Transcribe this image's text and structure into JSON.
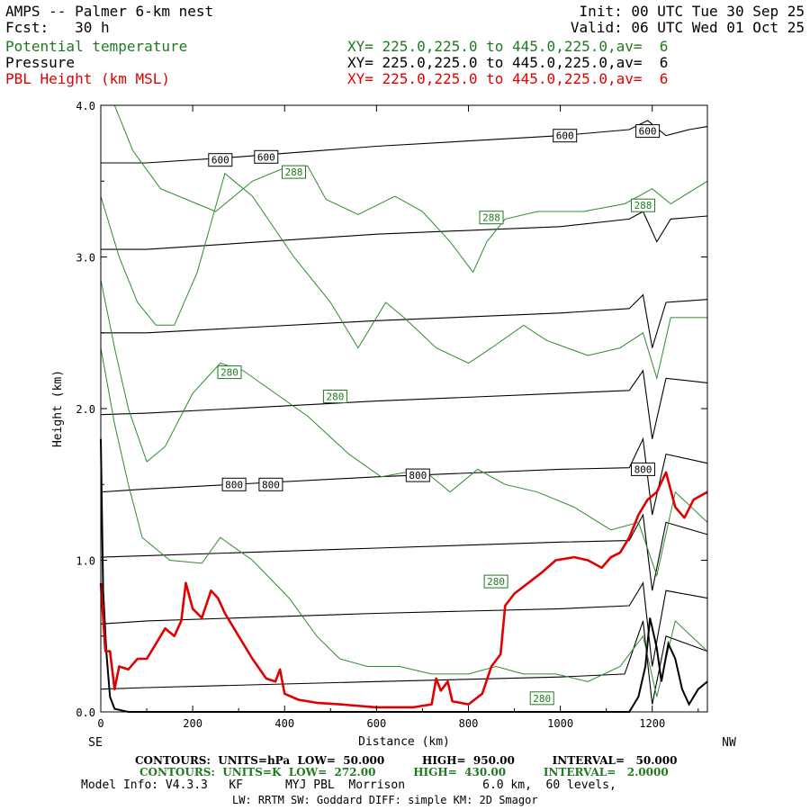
{
  "header": {
    "title": "AMPS -- Palmer 6-km nest",
    "fcst": "Fcst:   30 h",
    "init": "Init: 00 UTC Tue 30 Sep 25",
    "valid": "Valid: 06 UTC Wed 01 Oct 25",
    "field1": "Potential temperature",
    "field2": "Pressure",
    "field3": "PBL Height (km MSL)",
    "xy1": "XY= 225.0,225.0 to 445.0,225.0,av=  6",
    "xy2": "XY= 225.0,225.0 to 445.0,225.0,av=  6",
    "xy3": "XY= 225.0,225.0 to 445.0,225.0,av=  6"
  },
  "footer": {
    "line1": "CONTOURS:  UNITS=hPa  LOW=  50.000          HIGH=  950.00          INTERVAL=   50.000",
    "line2": "CONTOURS:  UNITS=K  LOW=  272.00          HIGH=  430.00          INTERVAL=   2.0000",
    "line3": "Model Info: V4.3.3   KF      MYJ PBL  Morrison           6.0 km,  60 levels,",
    "line4": "LW: RRTM SW: Goddard DIFF: simple KM: 2D Smagor"
  },
  "colors": {
    "theta": "#2e8b2e",
    "pressure": "#000000",
    "pbl": "#e00000"
  },
  "chart_data": {
    "type": "line",
    "xlabel": "Distance (km)",
    "ylabel": "Height (km)",
    "xlim": [
      0,
      1320
    ],
    "ylim": [
      0,
      4
    ],
    "x_ticks": [
      0,
      200,
      400,
      600,
      800,
      1000,
      1200
    ],
    "x_tick_labels": [
      "0",
      "200",
      "400",
      "600",
      "800",
      "1000",
      "1200"
    ],
    "y_ticks": [
      0,
      1,
      2,
      3,
      4
    ],
    "y_tick_labels": [
      "0.0",
      "1.0",
      "2.0",
      "3.0",
      "4.0"
    ],
    "left_end_label": "SE",
    "right_end_label": "NW",
    "pressure_contours": [
      {
        "level": 600,
        "label": "600",
        "points": [
          [
            0,
            3.62
          ],
          [
            100,
            3.62
          ],
          [
            300,
            3.66
          ],
          [
            600,
            3.73
          ],
          [
            1000,
            3.8
          ],
          [
            1150,
            3.84
          ],
          [
            1190,
            3.9
          ],
          [
            1230,
            3.8
          ],
          [
            1280,
            3.84
          ],
          [
            1320,
            3.86
          ]
        ],
        "label_positions": [
          [
            260,
            3.64
          ],
          [
            360,
            3.66
          ],
          [
            1010,
            3.8
          ],
          [
            1190,
            3.83
          ]
        ]
      },
      {
        "level": 650,
        "label": "",
        "points": [
          [
            0,
            3.05
          ],
          [
            100,
            3.05
          ],
          [
            600,
            3.15
          ],
          [
            1000,
            3.2
          ],
          [
            1150,
            3.25
          ],
          [
            1180,
            3.3
          ],
          [
            1210,
            3.1
          ],
          [
            1240,
            3.25
          ],
          [
            1320,
            3.27
          ]
        ]
      },
      {
        "level": 700,
        "label": "",
        "points": [
          [
            0,
            2.5
          ],
          [
            100,
            2.5
          ],
          [
            600,
            2.58
          ],
          [
            1000,
            2.63
          ],
          [
            1150,
            2.66
          ],
          [
            1180,
            2.75
          ],
          [
            1200,
            2.4
          ],
          [
            1230,
            2.7
          ],
          [
            1320,
            2.72
          ]
        ]
      },
      {
        "level": 750,
        "label": "",
        "points": [
          [
            0,
            1.96
          ],
          [
            100,
            1.97
          ],
          [
            600,
            2.05
          ],
          [
            1000,
            2.1
          ],
          [
            1150,
            2.12
          ],
          [
            1180,
            2.25
          ],
          [
            1200,
            1.8
          ],
          [
            1230,
            2.2
          ],
          [
            1320,
            2.17
          ]
        ]
      },
      {
        "level": 800,
        "label": "800",
        "points": [
          [
            0,
            1.45
          ],
          [
            100,
            1.47
          ],
          [
            600,
            1.55
          ],
          [
            1000,
            1.6
          ],
          [
            1150,
            1.61
          ],
          [
            1180,
            1.8
          ],
          [
            1200,
            1.3
          ],
          [
            1230,
            1.7
          ],
          [
            1320,
            1.64
          ]
        ],
        "label_positions": [
          [
            290,
            1.5
          ],
          [
            370,
            1.5
          ],
          [
            690,
            1.56
          ],
          [
            1180,
            1.6
          ]
        ]
      },
      {
        "level": 850,
        "label": "",
        "points": [
          [
            0,
            1.02
          ],
          [
            100,
            1.03
          ],
          [
            600,
            1.08
          ],
          [
            1000,
            1.12
          ],
          [
            1150,
            1.13
          ],
          [
            1180,
            1.3
          ],
          [
            1200,
            0.8
          ],
          [
            1230,
            1.25
          ],
          [
            1320,
            1.17
          ]
        ]
      },
      {
        "level": 900,
        "label": "",
        "points": [
          [
            0,
            0.58
          ],
          [
            100,
            0.6
          ],
          [
            600,
            0.65
          ],
          [
            1000,
            0.68
          ],
          [
            1150,
            0.7
          ],
          [
            1180,
            0.85
          ],
          [
            1200,
            0.3
          ],
          [
            1230,
            0.8
          ],
          [
            1320,
            0.75
          ]
        ]
      },
      {
        "level": 950,
        "label": "",
        "points": [
          [
            0,
            0.15
          ],
          [
            100,
            0.16
          ],
          [
            600,
            0.2
          ],
          [
            1000,
            0.23
          ],
          [
            1140,
            0.25
          ],
          [
            1180,
            0.6
          ],
          [
            1200,
            0.05
          ],
          [
            1230,
            0.5
          ],
          [
            1320,
            0.4
          ]
        ]
      }
    ],
    "theta_contours": [
      {
        "level": 288,
        "label": "288",
        "points": [
          [
            30,
            4.0
          ],
          [
            70,
            3.7
          ],
          [
            130,
            3.45
          ],
          [
            250,
            3.3
          ],
          [
            330,
            3.5
          ],
          [
            410,
            3.6
          ],
          [
            450,
            3.6
          ],
          [
            490,
            3.38
          ],
          [
            560,
            3.28
          ],
          [
            640,
            3.4
          ],
          [
            700,
            3.3
          ],
          [
            760,
            3.1
          ],
          [
            810,
            2.9
          ],
          [
            840,
            3.1
          ],
          [
            880,
            3.25
          ],
          [
            950,
            3.3
          ],
          [
            1050,
            3.3
          ],
          [
            1140,
            3.35
          ],
          [
            1200,
            3.45
          ],
          [
            1240,
            3.35
          ],
          [
            1320,
            3.5
          ]
        ],
        "label_positions": [
          [
            420,
            3.56
          ],
          [
            850,
            3.26
          ],
          [
            1180,
            3.34
          ]
        ]
      },
      {
        "level": 286,
        "label": "",
        "points": [
          [
            0,
            3.4
          ],
          [
            40,
            3.0
          ],
          [
            80,
            2.7
          ],
          [
            120,
            2.55
          ],
          [
            160,
            2.55
          ],
          [
            210,
            2.9
          ],
          [
            270,
            3.55
          ],
          [
            330,
            3.4
          ],
          [
            420,
            3.0
          ],
          [
            500,
            2.7
          ],
          [
            560,
            2.4
          ],
          [
            620,
            2.7
          ],
          [
            660,
            2.6
          ],
          [
            730,
            2.4
          ],
          [
            800,
            2.3
          ],
          [
            850,
            2.4
          ],
          [
            920,
            2.55
          ],
          [
            970,
            2.45
          ],
          [
            1060,
            2.35
          ],
          [
            1130,
            2.4
          ],
          [
            1180,
            2.5
          ],
          [
            1210,
            2.2
          ],
          [
            1240,
            2.6
          ],
          [
            1320,
            2.6
          ]
        ]
      },
      {
        "level": 284,
        "label": "",
        "points": [
          [
            0,
            2.85
          ],
          [
            30,
            2.4
          ],
          [
            60,
            2.0
          ],
          [
            100,
            1.65
          ],
          [
            140,
            1.75
          ],
          [
            200,
            2.1
          ],
          [
            260,
            2.3
          ],
          [
            310,
            2.25
          ],
          [
            380,
            2.1
          ],
          [
            450,
            1.95
          ],
          [
            540,
            1.7
          ],
          [
            610,
            1.55
          ],
          [
            700,
            1.6
          ],
          [
            760,
            1.45
          ],
          [
            820,
            1.6
          ],
          [
            880,
            1.5
          ],
          [
            950,
            1.45
          ],
          [
            1030,
            1.35
          ],
          [
            1110,
            1.2
          ],
          [
            1170,
            1.25
          ],
          [
            1210,
            0.9
          ],
          [
            1250,
            1.45
          ],
          [
            1320,
            1.25
          ]
        ]
      },
      {
        "level": 280,
        "label": "280",
        "points": [
          [
            0,
            2.4
          ],
          [
            30,
            1.9
          ],
          [
            60,
            1.5
          ],
          [
            90,
            1.15
          ],
          [
            150,
            1.0
          ],
          [
            220,
            0.98
          ],
          [
            260,
            1.15
          ],
          [
            330,
            1.0
          ],
          [
            410,
            0.75
          ],
          [
            470,
            0.5
          ],
          [
            520,
            0.35
          ],
          [
            580,
            0.3
          ],
          [
            650,
            0.3
          ],
          [
            720,
            0.25
          ],
          [
            800,
            0.25
          ],
          [
            860,
            0.3
          ],
          [
            920,
            0.25
          ],
          [
            990,
            0.25
          ],
          [
            1060,
            0.2
          ],
          [
            1130,
            0.3
          ],
          [
            1180,
            0.5
          ],
          [
            1210,
            0.1
          ],
          [
            1250,
            0.6
          ],
          [
            1320,
            0.4
          ]
        ],
        "label_positions": [
          [
            280,
            2.24
          ],
          [
            510,
            2.08
          ],
          [
            860,
            0.86
          ],
          [
            960,
            0.09
          ]
        ]
      }
    ],
    "pbl_height": {
      "name": "PBL Height (km MSL)",
      "points": [
        [
          0,
          0.85
        ],
        [
          10,
          0.4
        ],
        [
          20,
          0.4
        ],
        [
          30,
          0.15
        ],
        [
          40,
          0.3
        ],
        [
          60,
          0.28
        ],
        [
          80,
          0.35
        ],
        [
          100,
          0.35
        ],
        [
          120,
          0.45
        ],
        [
          140,
          0.55
        ],
        [
          160,
          0.5
        ],
        [
          175,
          0.6
        ],
        [
          185,
          0.85
        ],
        [
          200,
          0.68
        ],
        [
          220,
          0.62
        ],
        [
          240,
          0.8
        ],
        [
          255,
          0.75
        ],
        [
          270,
          0.65
        ],
        [
          300,
          0.5
        ],
        [
          330,
          0.35
        ],
        [
          360,
          0.22
        ],
        [
          380,
          0.2
        ],
        [
          390,
          0.28
        ],
        [
          400,
          0.12
        ],
        [
          430,
          0.08
        ],
        [
          470,
          0.06
        ],
        [
          520,
          0.05
        ],
        [
          600,
          0.03
        ],
        [
          680,
          0.03
        ],
        [
          720,
          0.05
        ],
        [
          730,
          0.22
        ],
        [
          740,
          0.14
        ],
        [
          755,
          0.2
        ],
        [
          765,
          0.07
        ],
        [
          800,
          0.05
        ],
        [
          830,
          0.12
        ],
        [
          850,
          0.3
        ],
        [
          870,
          0.38
        ],
        [
          880,
          0.7
        ],
        [
          900,
          0.78
        ],
        [
          930,
          0.85
        ],
        [
          960,
          0.92
        ],
        [
          990,
          1.0
        ],
        [
          1030,
          1.02
        ],
        [
          1060,
          1.0
        ],
        [
          1090,
          0.95
        ],
        [
          1110,
          1.02
        ],
        [
          1130,
          1.05
        ],
        [
          1150,
          1.15
        ],
        [
          1170,
          1.3
        ],
        [
          1190,
          1.4
        ],
        [
          1210,
          1.45
        ],
        [
          1230,
          1.58
        ],
        [
          1250,
          1.35
        ],
        [
          1270,
          1.28
        ],
        [
          1290,
          1.4
        ],
        [
          1320,
          1.45
        ]
      ]
    },
    "terrain": {
      "name": "",
      "points": [
        [
          0,
          1.8
        ],
        [
          5,
          0.8
        ],
        [
          12,
          0.4
        ],
        [
          20,
          0.1
        ],
        [
          30,
          0.02
        ],
        [
          60,
          0
        ],
        [
          1150,
          0
        ],
        [
          1170,
          0.1
        ],
        [
          1185,
          0.3
        ],
        [
          1195,
          0.62
        ],
        [
          1210,
          0.42
        ],
        [
          1220,
          0.2
        ],
        [
          1235,
          0.45
        ],
        [
          1250,
          0.35
        ],
        [
          1265,
          0.15
        ],
        [
          1280,
          0.05
        ],
        [
          1300,
          0.15
        ],
        [
          1320,
          0.2
        ]
      ]
    }
  }
}
